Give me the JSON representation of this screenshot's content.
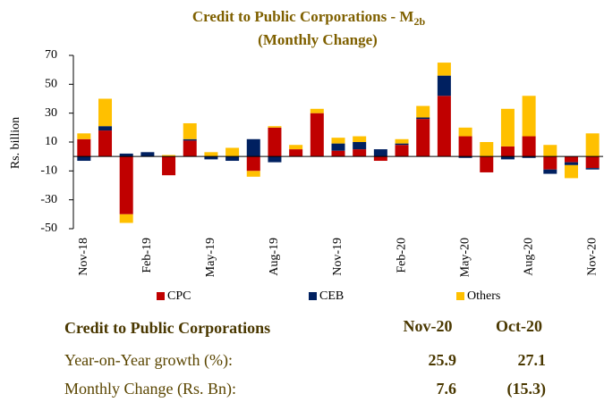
{
  "chart_data": {
    "type": "stacked_bar",
    "title": "Credit to Public Corporations - M",
    "title_subscript": "2b",
    "subtitle": "(Monthly Change)",
    "y_label": "Rs. billion",
    "categories": [
      "Nov-18",
      null,
      null,
      "Feb-19",
      null,
      null,
      "May-19",
      null,
      null,
      "Aug-19",
      null,
      null,
      "Nov-19",
      null,
      null,
      "Feb-20",
      null,
      null,
      "May-20",
      null,
      null,
      "Aug-20",
      null,
      null,
      "Nov-20"
    ],
    "series": [
      {
        "name": "CPC",
        "color": "#c00000",
        "values": [
          12,
          18,
          -40,
          0,
          -13,
          11,
          0,
          0,
          -10,
          20,
          5,
          30,
          4,
          5,
          -3,
          8,
          26,
          42,
          14,
          -11,
          7,
          14,
          -9,
          -4,
          -8
        ]
      },
      {
        "name": "CEB",
        "color": "#002060",
        "values": [
          -3,
          3,
          2,
          3,
          0,
          1,
          -2,
          -3,
          12,
          -4,
          0,
          0,
          5,
          5,
          5,
          1,
          1,
          14,
          -1,
          0,
          -2,
          -1,
          -3,
          -2,
          -1
        ]
      },
      {
        "name": "Others",
        "color": "#ffc000",
        "values": [
          4,
          19,
          -6,
          0,
          1,
          11,
          3,
          6,
          -4,
          1,
          3,
          3,
          4,
          4,
          0,
          3,
          8,
          9,
          6,
          10,
          26,
          28,
          8,
          -9,
          16
        ]
      }
    ],
    "ylim": [
      -50,
      70
    ],
    "yticks": [
      70,
      50,
      30,
      10,
      -10,
      -30,
      -50
    ],
    "legend": "bottom"
  },
  "table": {
    "header": [
      "Credit to Public Corporations",
      "Nov-20",
      "Oct-20"
    ],
    "rows": [
      [
        "Year-on-Year growth (%):",
        "25.9",
        "27.1"
      ],
      [
        "Monthly Change (Rs. Bn):",
        "7.6",
        "(15.3)"
      ]
    ]
  }
}
